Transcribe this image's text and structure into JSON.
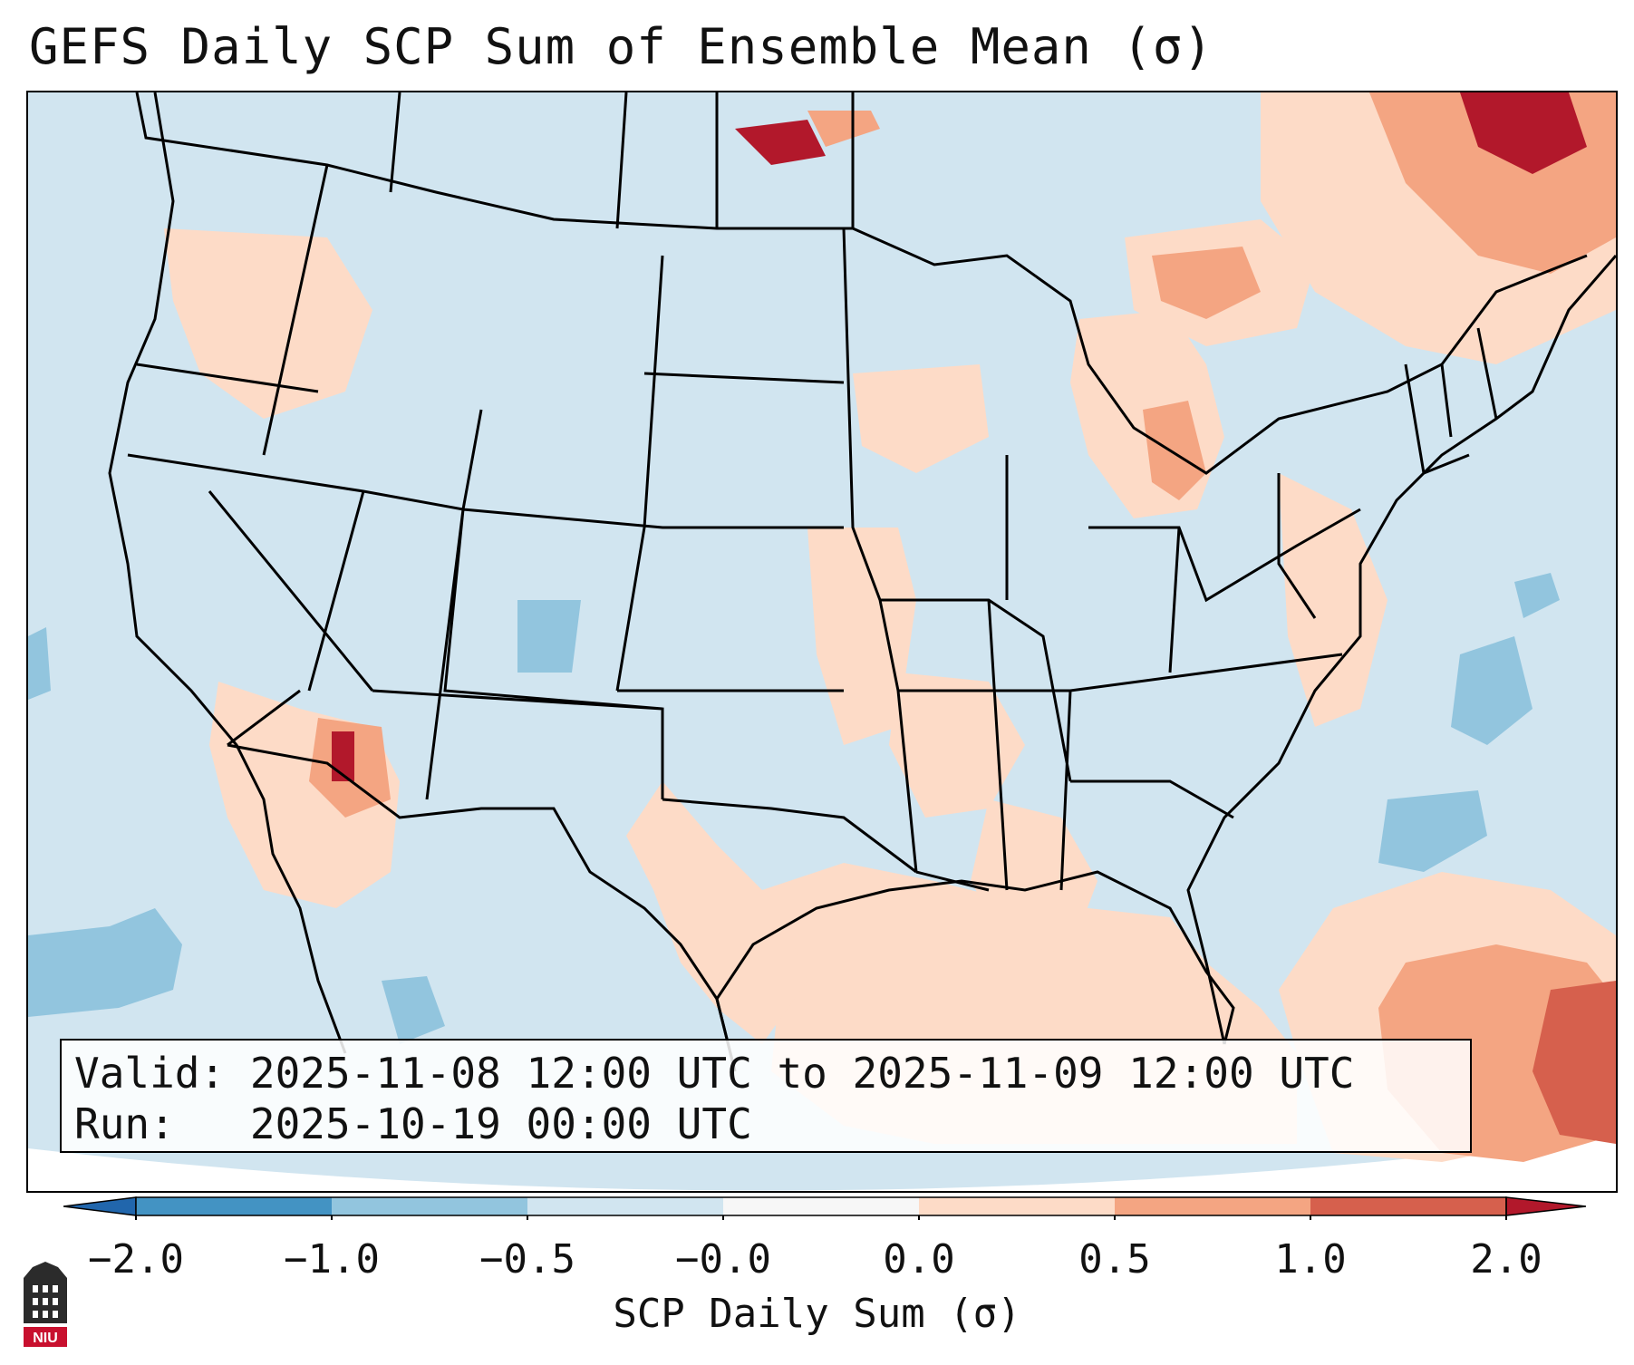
{
  "title": "GEFS Daily SCP Sum of Ensemble Mean (σ)",
  "info": {
    "valid_label": "Valid:",
    "valid_value": "2025-11-08 12:00 UTC to 2025-11-09 12:00 UTC",
    "run_label": "Run:",
    "run_value": "2025-10-19 00:00 UTC"
  },
  "colorbar": {
    "label": "SCP Daily Sum (σ)",
    "ticks": [
      "−2.0",
      "−1.0",
      "−0.5",
      "−0.0",
      "0.0",
      "0.5",
      "1.0",
      "2.0"
    ],
    "colors": [
      "#4393c3",
      "#92c5de",
      "#d1e5f0",
      "#f7f7f7",
      "#fddbc7",
      "#f4a582",
      "#d6604d"
    ],
    "extend_low_color": "#2166ac",
    "extend_high_color": "#b2182b"
  },
  "logo": {
    "text": "NIU",
    "color": "#c8102e"
  },
  "map": {
    "background_color": "#d1e5f0",
    "outside_color": "#ffffff",
    "line_color": "#000000"
  }
}
